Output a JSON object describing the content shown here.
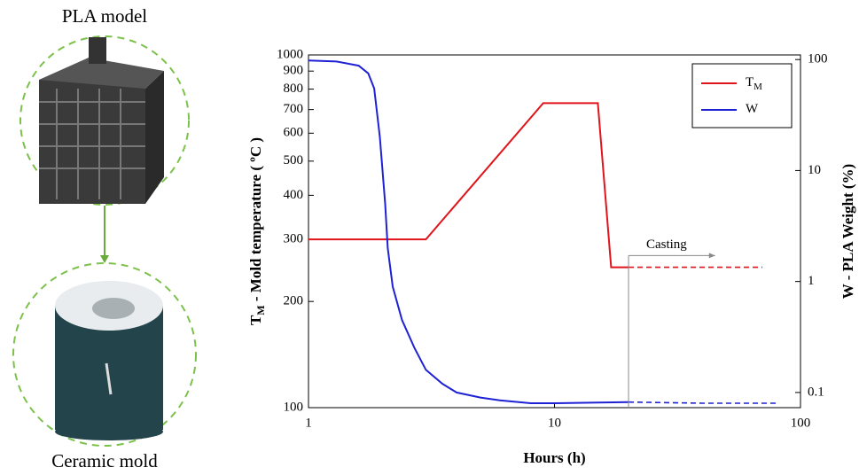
{
  "figure": {
    "top_label": "PLA model",
    "bottom_label": "Ceramic mold"
  },
  "chart_data": {
    "type": "line",
    "xlabel": "Hours (h)",
    "ylabel": {
      "main": "T",
      "sub": "M",
      "rest": "  - Mold  temperature ( ºC )"
    },
    "y2label": "W - PLA Weight (%)",
    "xscale": "log",
    "yscale": "log",
    "y2scale": "log",
    "xlim": [
      1,
      100
    ],
    "xticks": [
      1,
      10,
      100
    ],
    "ylim": [
      100,
      1000
    ],
    "yticks": [
      100,
      200,
      300,
      400,
      500,
      600,
      700,
      800,
      900,
      1000
    ],
    "y2lim": [
      0.073,
      110
    ],
    "y2ticks": [
      0.1,
      1,
      10,
      100
    ],
    "legend": "top-right",
    "dashed_from_x": 20,
    "series": [
      {
        "name": "T",
        "name_sub": "M",
        "color": "#e0141b",
        "axis": "y",
        "x": [
          1,
          3,
          9,
          15,
          17,
          20,
          70
        ],
        "values": [
          300,
          300,
          730,
          730,
          250,
          250,
          250
        ]
      },
      {
        "name": "W",
        "color": "#1e22d4",
        "axis": "y2",
        "x": [
          1,
          1.3,
          1.6,
          1.75,
          1.85,
          1.95,
          2.05,
          2.1,
          2.2,
          2.4,
          2.7,
          3,
          3.5,
          4,
          5,
          6,
          8,
          10,
          15,
          20,
          40,
          80
        ],
        "values": [
          98,
          96,
          88,
          75,
          55,
          20,
          5,
          2,
          0.9,
          0.45,
          0.25,
          0.16,
          0.12,
          0.1,
          0.09,
          0.085,
          0.08,
          0.08,
          0.081,
          0.082,
          0.08,
          0.08
        ]
      }
    ],
    "annotation": {
      "text": "Casting",
      "x": 20,
      "x_end": 45,
      "y": 270
    }
  }
}
